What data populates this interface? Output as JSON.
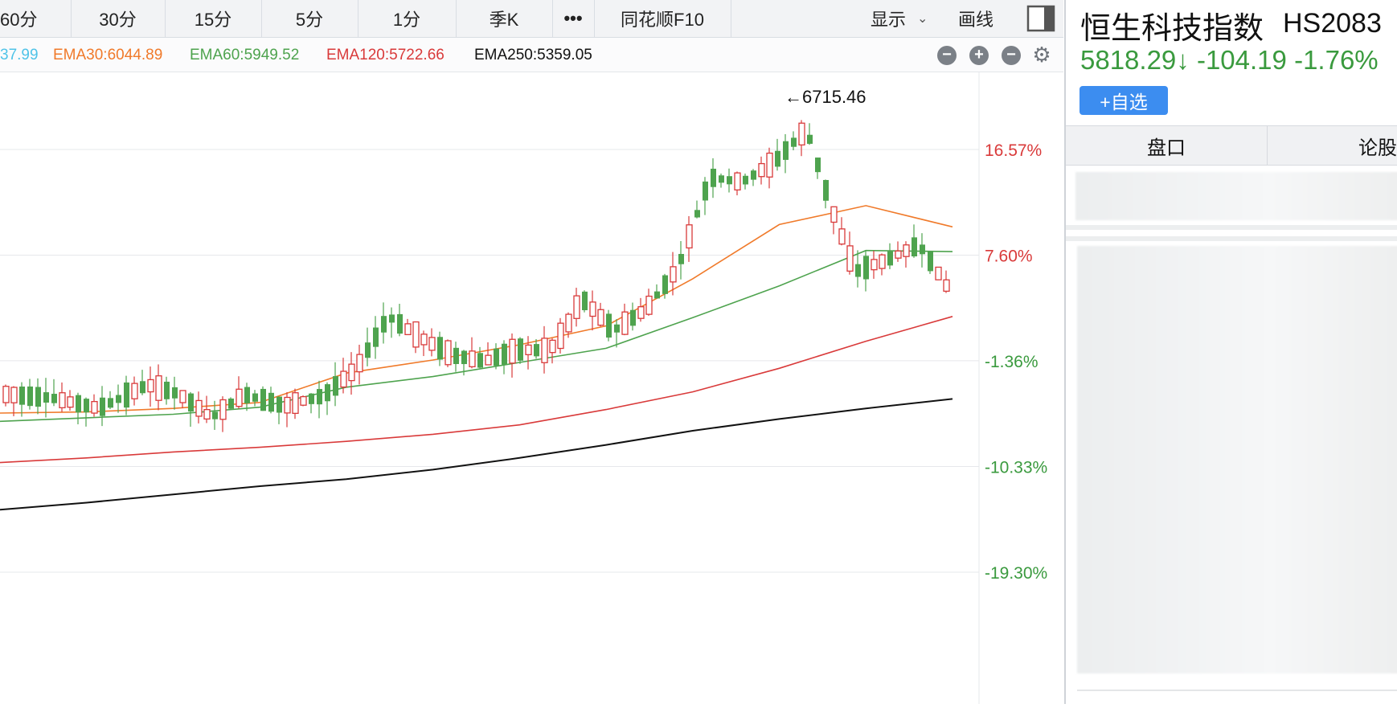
{
  "toolbar": {
    "tabs": [
      "60分",
      "30分",
      "15分",
      "5分",
      "1分",
      "季K",
      "•••",
      "同花顺F10"
    ],
    "display_label": "显示",
    "draw_label": "画线"
  },
  "ema_legend": [
    {
      "label": "37.99",
      "color": "#4fc3e8"
    },
    {
      "label": "EMA30:6044.89",
      "color": "#f07a2a"
    },
    {
      "label": "EMA60:5949.52",
      "color": "#4ea34e"
    },
    {
      "label": "EMA120:5722.66",
      "color": "#d93a3a"
    },
    {
      "label": "EMA250:5359.05",
      "color": "#111111"
    }
  ],
  "chart_controls": [
    "collapse",
    "zoom-in",
    "zoom-out",
    "settings"
  ],
  "chart_data": {
    "type": "candlestick",
    "high_label": "←6715.46",
    "y_axis_ticks": [
      "16.57%",
      "7.60%",
      "-1.36%",
      "-10.33%",
      "-19.30%"
    ],
    "y_axis_values": [
      16.57,
      7.6,
      -1.36,
      -10.33,
      -19.3
    ],
    "y_axis_colors": [
      "#d93a3a",
      "#d93a3a",
      "#3a9a3e",
      "#3a9a3e",
      "#3a9a3e"
    ],
    "series": [
      {
        "name": "EMA250",
        "color": "#111111",
        "values": [
          -14.0,
          -13.4,
          -12.7,
          -12.0,
          -11.4,
          -10.6,
          -9.6,
          -8.5,
          -7.3,
          -6.3,
          -5.4,
          -4.6
        ]
      },
      {
        "name": "EMA120",
        "color": "#d93a3a",
        "values": [
          -10.0,
          -9.6,
          -9.1,
          -8.7,
          -8.2,
          -7.6,
          -6.8,
          -5.5,
          -4.0,
          -2.0,
          0.3,
          2.4
        ]
      },
      {
        "name": "EMA60",
        "color": "#4ea34e",
        "values": [
          -6.5,
          -6.2,
          -5.9,
          -5.3,
          -3.6,
          -2.7,
          -1.5,
          -0.3,
          2.3,
          5.0,
          8.0,
          7.9
        ]
      },
      {
        "name": "EMA30",
        "color": "#f07a2a",
        "values": [
          -5.8,
          -5.7,
          -5.4,
          -4.9,
          -2.4,
          -1.3,
          0.0,
          1.6,
          5.6,
          10.2,
          11.8,
          10.0
        ]
      }
    ]
  },
  "stock": {
    "name": "恒生科技指数",
    "code": "HS2083",
    "price": "5818.29↓",
    "change": "-104.19",
    "change_pct": "-1.76%",
    "add_fav_label": "+自选"
  },
  "right_tabs": [
    "盘口",
    "论股堂"
  ]
}
